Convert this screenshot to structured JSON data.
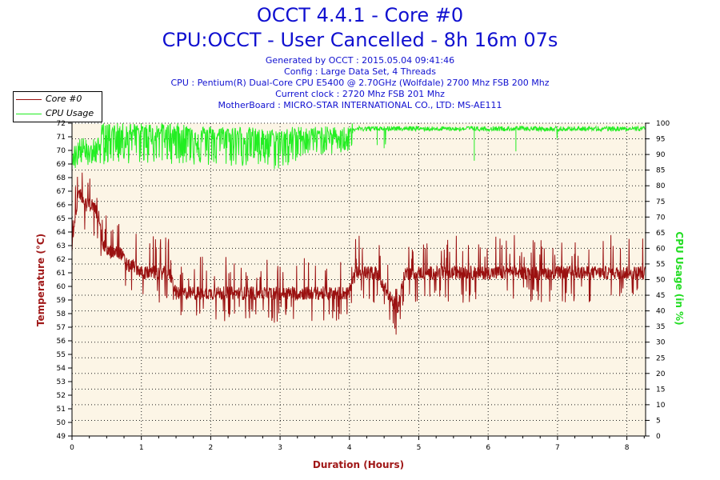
{
  "title": "OCCT 4.4.1 - Core #0",
  "subtitle": "CPU:OCCT - User Cancelled - 8h 16m 07s",
  "info_lines": [
    "Generated by OCCT : 2015.05.04 09:41:46",
    "Config : Large Data Set, 4 Threads",
    "CPU : Pentium(R) Dual-Core CPU E5400 @ 2.70GHz (Wolfdale) 2700 Mhz FSB 200 Mhz",
    "Current clock : 2720 Mhz FSB 201 Mhz",
    "MotherBoard : MICRO-STAR INTERNATIONAL CO., LTD: MS-AE111"
  ],
  "colors": {
    "title": "#1010d0",
    "plot_bg": "#fcf5e6",
    "temperature": "#9a1010",
    "cpu_usage": "#22ee22",
    "axis_label_left": "#a01818",
    "axis_label_right": "#22dd22"
  },
  "chart_data": {
    "type": "line",
    "xlabel": "Duration (Hours)",
    "ylabel": "Temperature (°C)",
    "y2label": "CPU Usage (in %)",
    "xlim": [
      0,
      8.27
    ],
    "ylim": [
      49,
      72
    ],
    "y2lim": [
      0,
      100
    ],
    "x_ticks": [
      0,
      1,
      2,
      3,
      4,
      5,
      6,
      7,
      8
    ],
    "y_ticks": [
      49,
      50,
      51,
      52,
      53,
      54,
      55,
      56,
      57,
      58,
      59,
      60,
      61,
      62,
      63,
      64,
      65,
      66,
      67,
      68,
      69,
      70,
      71,
      72
    ],
    "y2_ticks": [
      0,
      5,
      10,
      15,
      20,
      25,
      30,
      35,
      40,
      45,
      50,
      55,
      60,
      65,
      70,
      75,
      80,
      85,
      90,
      95,
      100
    ],
    "grid": true,
    "legend_position": "top-left",
    "series": [
      {
        "name": "Core #0",
        "axis": "left",
        "x": [
          0,
          0.05,
          0.1,
          0.15,
          0.2,
          0.3,
          0.4,
          0.45,
          0.55,
          0.7,
          0.8,
          0.9,
          1.0,
          1.2,
          1.4,
          1.5,
          1.7,
          2.0,
          2.5,
          3.0,
          3.5,
          4.0,
          4.05,
          4.1,
          4.4,
          4.6,
          4.7,
          4.8,
          5.0,
          5.5,
          6.0,
          6.5,
          7.0,
          7.5,
          8.0,
          8.27
        ],
        "y": [
          63,
          65,
          67,
          66.5,
          66,
          66,
          65,
          63,
          62.5,
          62.5,
          61.5,
          61.5,
          61,
          61,
          61,
          59.5,
          59.5,
          59.5,
          59.5,
          59.5,
          59.5,
          59.5,
          60.5,
          61,
          61,
          59,
          58.5,
          61,
          61,
          61,
          61,
          61,
          61,
          61,
          61,
          61
        ]
      },
      {
        "name": "CPU Usage",
        "axis": "right",
        "x": [
          0,
          0.1,
          0.3,
          0.5,
          1.0,
          1.5,
          2.0,
          2.5,
          2.8,
          3.0,
          3.2,
          3.5,
          4.0,
          4.05,
          4.5,
          5.0,
          5.8,
          6.0,
          6.4,
          7.0,
          7.5,
          8.0,
          8.27
        ],
        "y": [
          93,
          95,
          96,
          97,
          97,
          97,
          96,
          96,
          95,
          95,
          96,
          96,
          96,
          99,
          99,
          99,
          99,
          99,
          99,
          99,
          99,
          99,
          99
        ]
      }
    ]
  }
}
